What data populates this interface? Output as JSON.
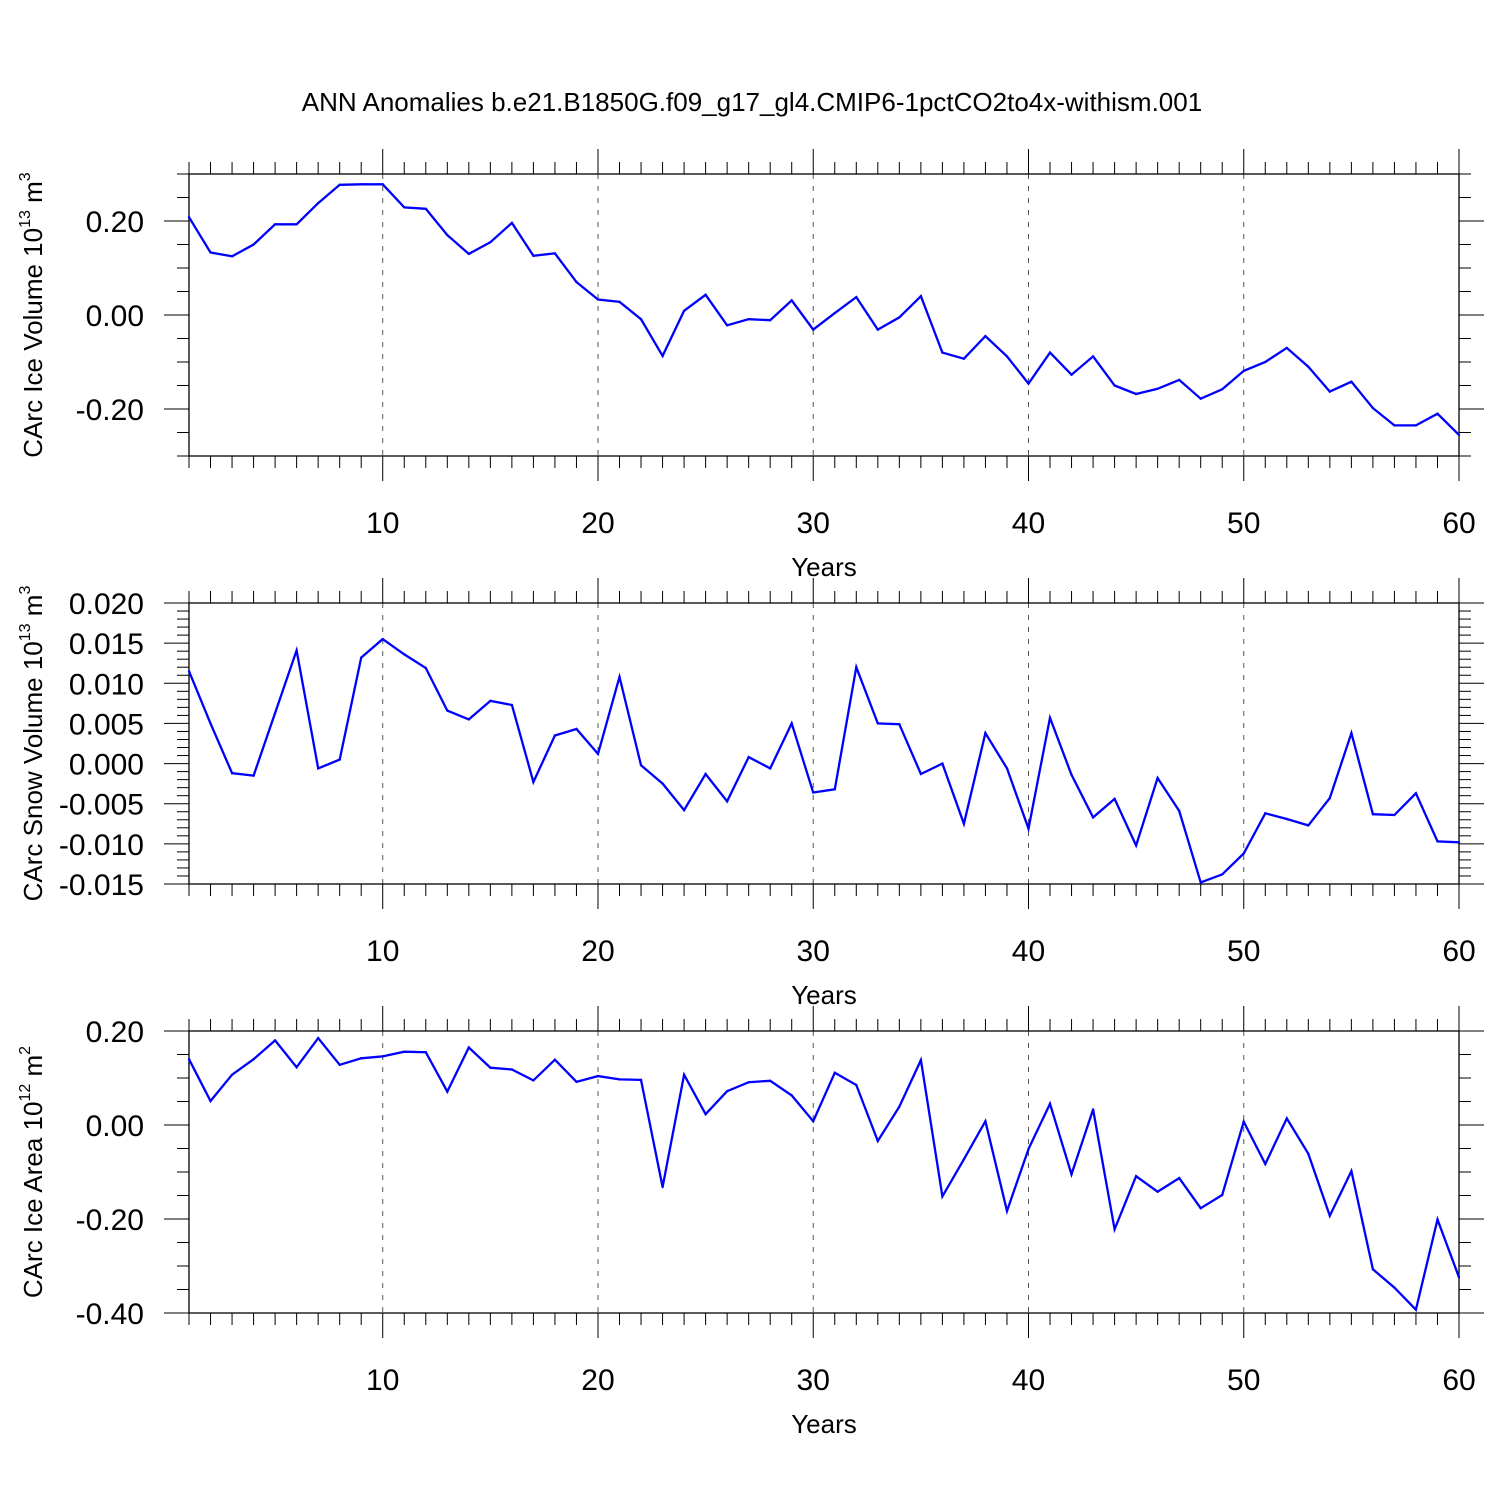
{
  "title": "ANN Anomalies b.e21.B1850G.f09_g17_gl4.CMIP6-1pctCO2to4x-withism.001",
  "colors": {
    "series": "#0000ff",
    "frame": "#000000",
    "grid": "#555555"
  },
  "chart_data": [
    {
      "type": "line",
      "title": "",
      "xlabel": "Years",
      "ylabel": {
        "text": "CArc Ice Volume 10",
        "exp": "13",
        "unit": " m",
        "unit_exp": "3"
      },
      "xlim": [
        1,
        60
      ],
      "ylim": [
        -0.3,
        0.3
      ],
      "xticks": [
        10,
        20,
        30,
        40,
        50,
        60
      ],
      "xtick_labels": [
        "10",
        "20",
        "30",
        "40",
        "50",
        "60"
      ],
      "yticks": [
        -0.2,
        0.0,
        0.2
      ],
      "ytick_labels": [
        "-0.20",
        "0.00",
        "0.20"
      ],
      "y_minor_step": 0.05,
      "grid": "vertical dashed at major x ticks",
      "series": [
        {
          "name": "CArc Ice Volume",
          "x": [
            1,
            2,
            3,
            4,
            5,
            6,
            7,
            8,
            9,
            10,
            11,
            12,
            13,
            14,
            15,
            16,
            17,
            18,
            19,
            20,
            21,
            22,
            23,
            24,
            25,
            26,
            27,
            28,
            29,
            30,
            31,
            32,
            33,
            34,
            35,
            36,
            37,
            38,
            39,
            40,
            41,
            42,
            43,
            44,
            45,
            46,
            47,
            48,
            49,
            50,
            51,
            52,
            53,
            54,
            55,
            56,
            57,
            58,
            59,
            60
          ],
          "values": [
            0.208,
            0.133,
            0.125,
            0.15,
            0.193,
            0.193,
            0.238,
            0.277,
            0.278,
            0.278,
            0.229,
            0.226,
            0.17,
            0.13,
            0.155,
            0.196,
            0.126,
            0.131,
            0.07,
            0.033,
            0.028,
            -0.009,
            -0.087,
            0.009,
            0.043,
            -0.022,
            -0.009,
            -0.011,
            0.031,
            -0.031,
            0.004,
            0.038,
            -0.031,
            -0.005,
            0.04,
            -0.08,
            -0.093,
            -0.045,
            -0.088,
            -0.146,
            -0.08,
            -0.127,
            -0.088,
            -0.15,
            -0.168,
            -0.157,
            -0.138,
            -0.178,
            -0.158,
            -0.119,
            -0.1,
            -0.07,
            -0.11,
            -0.163,
            -0.142,
            -0.198,
            -0.235,
            -0.235,
            -0.21,
            -0.255
          ]
        }
      ]
    },
    {
      "type": "line",
      "title": "",
      "xlabel": "Years",
      "ylabel": {
        "text": "CArc Snow Volume 10",
        "exp": "13",
        "unit": " m",
        "unit_exp": "3"
      },
      "xlim": [
        1,
        60
      ],
      "ylim": [
        -0.015,
        0.02
      ],
      "xticks": [
        10,
        20,
        30,
        40,
        50,
        60
      ],
      "xtick_labels": [
        "10",
        "20",
        "30",
        "40",
        "50",
        "60"
      ],
      "yticks": [
        -0.015,
        -0.01,
        -0.005,
        0.0,
        0.005,
        0.01,
        0.015,
        0.02
      ],
      "ytick_labels": [
        "-0.015",
        "-0.010",
        "-0.005",
        "0.000",
        "0.005",
        "0.010",
        "0.015",
        "0.020"
      ],
      "y_minor_step": 0.001,
      "grid": "vertical dashed at major x ticks",
      "series": [
        {
          "name": "CArc Snow Volume",
          "x": [
            1,
            2,
            3,
            4,
            5,
            6,
            7,
            8,
            9,
            10,
            11,
            12,
            13,
            14,
            15,
            16,
            17,
            18,
            19,
            20,
            21,
            22,
            23,
            24,
            25,
            26,
            27,
            28,
            29,
            30,
            31,
            32,
            33,
            34,
            35,
            36,
            37,
            38,
            39,
            40,
            41,
            42,
            43,
            44,
            45,
            46,
            47,
            48,
            49,
            50,
            51,
            52,
            53,
            54,
            55,
            56,
            57,
            58,
            59,
            60
          ],
          "values": [
            0.0115,
            0.005,
            -0.0012,
            -0.0015,
            0.0063,
            0.0141,
            -0.0006,
            0.0005,
            0.0132,
            0.0155,
            0.0136,
            0.0119,
            0.0066,
            0.0055,
            0.0078,
            0.0073,
            -0.0023,
            0.0035,
            0.0043,
            0.0012,
            0.0108,
            -0.0002,
            -0.0025,
            -0.0058,
            -0.0013,
            -0.0047,
            0.0008,
            -0.0006,
            0.005,
            -0.0036,
            -0.0032,
            0.012,
            0.005,
            0.0049,
            -0.0013,
            0.0,
            -0.0075,
            0.0038,
            -0.0006,
            -0.0081,
            0.0057,
            -0.0014,
            -0.0067,
            -0.0044,
            -0.0102,
            -0.0018,
            -0.0059,
            -0.0148,
            -0.0138,
            -0.0112,
            -0.0062,
            -0.0069,
            -0.0077,
            -0.0043,
            0.0038,
            -0.0063,
            -0.0064,
            -0.0037,
            -0.0097,
            -0.0098
          ]
        }
      ]
    },
    {
      "type": "line",
      "title": "",
      "xlabel": "Years",
      "ylabel": {
        "text": "CArc Ice Area 10",
        "exp": "12",
        "unit": " m",
        "unit_exp": "2"
      },
      "xlim": [
        1,
        60
      ],
      "ylim": [
        -0.4,
        0.2
      ],
      "xticks": [
        10,
        20,
        30,
        40,
        50,
        60
      ],
      "xtick_labels": [
        "10",
        "20",
        "30",
        "40",
        "50",
        "60"
      ],
      "yticks": [
        -0.4,
        -0.2,
        0.0,
        0.2
      ],
      "ytick_labels": [
        "-0.40",
        "-0.20",
        "0.00",
        "0.20"
      ],
      "y_minor_step": 0.05,
      "grid": "vertical dashed at major x ticks",
      "series": [
        {
          "name": "CArc Ice Area",
          "x": [
            1,
            2,
            3,
            4,
            5,
            6,
            7,
            8,
            9,
            10,
            11,
            12,
            13,
            14,
            15,
            16,
            17,
            18,
            19,
            20,
            21,
            22,
            23,
            24,
            25,
            26,
            27,
            28,
            29,
            30,
            31,
            32,
            33,
            34,
            35,
            36,
            37,
            38,
            39,
            40,
            41,
            42,
            43,
            44,
            45,
            46,
            47,
            48,
            49,
            50,
            51,
            52,
            53,
            54,
            55,
            56,
            57,
            58,
            59,
            60
          ],
          "values": [
            0.14,
            0.051,
            0.107,
            0.14,
            0.18,
            0.123,
            0.185,
            0.128,
            0.142,
            0.146,
            0.156,
            0.155,
            0.071,
            0.165,
            0.122,
            0.118,
            0.095,
            0.139,
            0.092,
            0.104,
            0.097,
            0.096,
            -0.132,
            0.107,
            0.023,
            0.072,
            0.091,
            0.094,
            0.063,
            0.008,
            0.111,
            0.085,
            -0.034,
            0.039,
            0.138,
            -0.152,
            -0.073,
            0.008,
            -0.183,
            -0.051,
            0.045,
            -0.105,
            0.033,
            -0.222,
            -0.109,
            -0.142,
            -0.113,
            -0.177,
            -0.149,
            0.007,
            -0.083,
            0.014,
            -0.061,
            -0.193,
            -0.098,
            -0.307,
            -0.346,
            -0.393,
            -0.201,
            -0.324
          ]
        }
      ]
    }
  ]
}
